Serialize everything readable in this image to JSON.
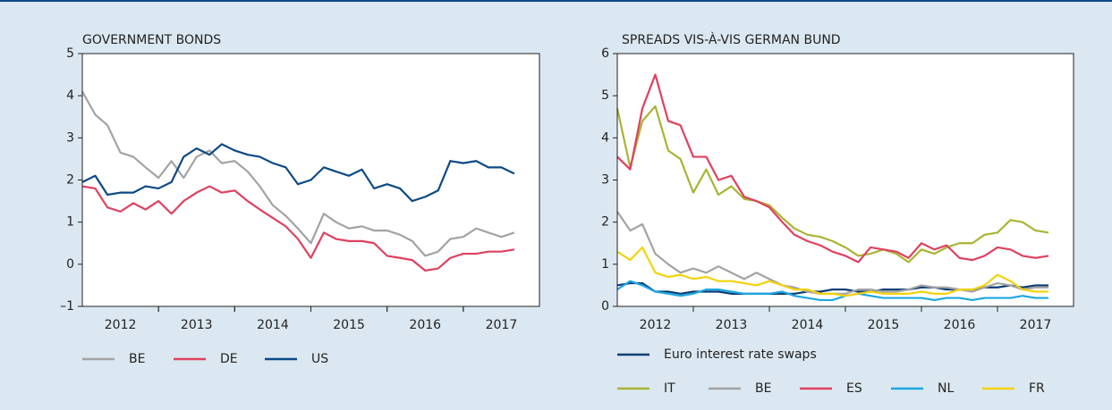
{
  "chart_data": [
    {
      "type": "line",
      "title": "GOVERNMENT BONDS",
      "x": [
        2012.0,
        2012.17,
        2012.33,
        2012.5,
        2012.67,
        2012.83,
        2013.0,
        2013.17,
        2013.33,
        2013.5,
        2013.67,
        2013.83,
        2014.0,
        2014.17,
        2014.33,
        2014.5,
        2014.67,
        2014.83,
        2015.0,
        2015.17,
        2015.33,
        2015.5,
        2015.67,
        2015.83,
        2016.0,
        2016.17,
        2016.33,
        2016.5,
        2016.67,
        2016.83,
        2017.0,
        2017.17,
        2017.33,
        2017.5,
        2017.67
      ],
      "series": [
        {
          "name": "BE",
          "color": "#a3a3a3",
          "values": [
            4.1,
            3.55,
            3.3,
            2.65,
            2.55,
            2.3,
            2.05,
            2.45,
            2.05,
            2.55,
            2.7,
            2.4,
            2.45,
            2.2,
            1.85,
            1.4,
            1.15,
            0.85,
            0.5,
            1.2,
            1.0,
            0.85,
            0.9,
            0.8,
            0.8,
            0.7,
            0.55,
            0.2,
            0.3,
            0.6,
            0.65,
            0.85,
            0.75,
            0.65,
            0.75
          ]
        },
        {
          "name": "DE",
          "color": "#e0405f",
          "values": [
            1.85,
            1.8,
            1.35,
            1.25,
            1.45,
            1.3,
            1.5,
            1.2,
            1.5,
            1.7,
            1.85,
            1.7,
            1.75,
            1.5,
            1.3,
            1.1,
            0.9,
            0.6,
            0.15,
            0.75,
            0.6,
            0.55,
            0.55,
            0.5,
            0.2,
            0.15,
            0.1,
            -0.15,
            -0.1,
            0.15,
            0.25,
            0.25,
            0.3,
            0.3,
            0.35
          ]
        },
        {
          "name": "US",
          "color": "#0b4a85",
          "values": [
            1.95,
            2.1,
            1.65,
            1.7,
            1.7,
            1.85,
            1.8,
            1.95,
            2.55,
            2.75,
            2.6,
            2.85,
            2.7,
            2.6,
            2.55,
            2.4,
            2.3,
            1.9,
            2.0,
            2.3,
            2.2,
            2.1,
            2.25,
            1.8,
            1.9,
            1.8,
            1.5,
            1.6,
            1.75,
            2.45,
            2.4,
            2.45,
            2.3,
            2.3,
            2.15
          ]
        }
      ],
      "xlim": [
        2012,
        2018
      ],
      "xticks": [
        {
          "value": 2012.5,
          "label": "2012"
        },
        {
          "value": 2013.5,
          "label": "2013"
        },
        {
          "value": 2014.5,
          "label": "2014"
        },
        {
          "value": 2015.5,
          "label": "2015"
        },
        {
          "value": 2016.5,
          "label": "2016"
        },
        {
          "value": 2017.5,
          "label": "2017"
        }
      ],
      "ylim": [
        -1,
        5
      ],
      "yticks": [
        {
          "value": -1,
          "label": "–1"
        },
        0,
        1,
        2,
        3,
        4,
        5
      ]
    },
    {
      "type": "line",
      "title": "SPREADS VIS-À-VIS GERMAN BUND",
      "x": [
        2012.0,
        2012.17,
        2012.33,
        2012.5,
        2012.67,
        2012.83,
        2013.0,
        2013.17,
        2013.33,
        2013.5,
        2013.67,
        2013.83,
        2014.0,
        2014.17,
        2014.33,
        2014.5,
        2014.67,
        2014.83,
        2015.0,
        2015.17,
        2015.33,
        2015.5,
        2015.67,
        2015.83,
        2016.0,
        2016.17,
        2016.33,
        2016.5,
        2016.67,
        2016.83,
        2017.0,
        2017.17,
        2017.33,
        2017.5,
        2017.67
      ],
      "series": [
        {
          "name": "Euro interest rate swaps",
          "color": "#0b3d73",
          "values": [
            0.5,
            0.55,
            0.55,
            0.35,
            0.35,
            0.3,
            0.35,
            0.35,
            0.35,
            0.3,
            0.3,
            0.3,
            0.3,
            0.3,
            0.3,
            0.35,
            0.35,
            0.4,
            0.4,
            0.35,
            0.35,
            0.4,
            0.4,
            0.4,
            0.45,
            0.45,
            0.4,
            0.4,
            0.4,
            0.45,
            0.45,
            0.5,
            0.45,
            0.5,
            0.5
          ]
        },
        {
          "name": "IT",
          "color": "#a9b433",
          "values": [
            4.7,
            3.3,
            4.4,
            4.75,
            3.7,
            3.5,
            2.7,
            3.25,
            2.65,
            2.85,
            2.55,
            2.5,
            2.4,
            2.1,
            1.85,
            1.7,
            1.65,
            1.55,
            1.4,
            1.2,
            1.25,
            1.35,
            1.25,
            1.05,
            1.35,
            1.25,
            1.4,
            1.5,
            1.5,
            1.7,
            1.75,
            2.05,
            2.0,
            1.8,
            1.75
          ]
        },
        {
          "name": "BE",
          "color": "#a3a3a3",
          "values": [
            2.25,
            1.8,
            1.95,
            1.25,
            1.0,
            0.8,
            0.9,
            0.8,
            0.95,
            0.8,
            0.65,
            0.8,
            0.65,
            0.5,
            0.45,
            0.35,
            0.3,
            0.3,
            0.3,
            0.4,
            0.4,
            0.35,
            0.35,
            0.4,
            0.5,
            0.45,
            0.45,
            0.4,
            0.35,
            0.45,
            0.55,
            0.5,
            0.4,
            0.45,
            0.45
          ]
        },
        {
          "name": "ES",
          "color": "#e0405f",
          "values": [
            3.55,
            3.25,
            4.7,
            5.5,
            4.4,
            4.3,
            3.55,
            3.55,
            3.0,
            3.1,
            2.6,
            2.5,
            2.35,
            2.0,
            1.7,
            1.55,
            1.45,
            1.3,
            1.2,
            1.05,
            1.4,
            1.35,
            1.3,
            1.15,
            1.5,
            1.35,
            1.45,
            1.15,
            1.1,
            1.2,
            1.4,
            1.35,
            1.2,
            1.15,
            1.2
          ]
        },
        {
          "name": "NL",
          "color": "#1ca7e0",
          "values": [
            0.4,
            0.6,
            0.5,
            0.35,
            0.3,
            0.25,
            0.3,
            0.4,
            0.4,
            0.35,
            0.3,
            0.3,
            0.3,
            0.35,
            0.25,
            0.2,
            0.15,
            0.15,
            0.25,
            0.3,
            0.25,
            0.2,
            0.2,
            0.2,
            0.2,
            0.15,
            0.2,
            0.2,
            0.15,
            0.2,
            0.2,
            0.2,
            0.25,
            0.2,
            0.2
          ]
        },
        {
          "name": "FR",
          "color": "#f5d20a",
          "values": [
            1.3,
            1.1,
            1.4,
            0.8,
            0.7,
            0.75,
            0.65,
            0.7,
            0.6,
            0.6,
            0.55,
            0.5,
            0.6,
            0.5,
            0.4,
            0.4,
            0.3,
            0.3,
            0.25,
            0.3,
            0.35,
            0.3,
            0.3,
            0.3,
            0.35,
            0.3,
            0.3,
            0.4,
            0.4,
            0.5,
            0.75,
            0.6,
            0.4,
            0.35,
            0.35
          ]
        }
      ],
      "xlim": [
        2012,
        2018
      ],
      "xticks": [
        {
          "value": 2012.5,
          "label": "2012"
        },
        {
          "value": 2013.5,
          "label": "2013"
        },
        {
          "value": 2014.5,
          "label": "2014"
        },
        {
          "value": 2015.5,
          "label": "2015"
        },
        {
          "value": 2016.5,
          "label": "2016"
        },
        {
          "value": 2017.5,
          "label": "2017"
        }
      ],
      "ylim": [
        0,
        6
      ],
      "yticks": [
        0,
        1,
        2,
        3,
        4,
        5,
        6
      ]
    }
  ]
}
